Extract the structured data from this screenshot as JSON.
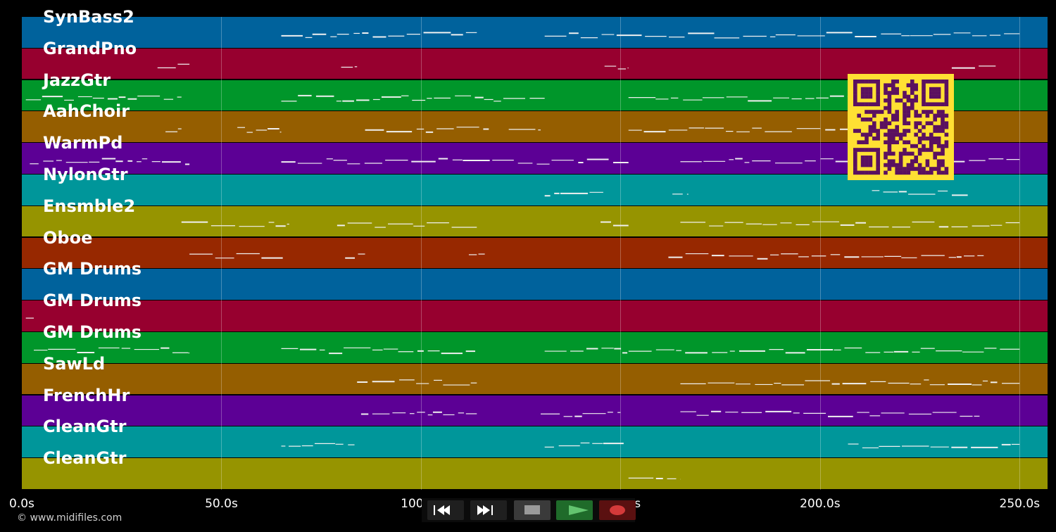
{
  "app": {
    "copyright": "© www.midifiles.com"
  },
  "timeline": {
    "max_seconds": 257.0,
    "ticks": [
      {
        "label": "0.0s",
        "seconds": 0
      },
      {
        "label": "50.0s",
        "seconds": 50
      },
      {
        "label": "100.0s",
        "seconds": 100
      },
      {
        "label": "150.0s",
        "seconds": 150
      },
      {
        "label": "200.0s",
        "seconds": 200
      },
      {
        "label": "250.0s",
        "seconds": 250
      }
    ]
  },
  "tracks": [
    {
      "name": "SynBass2",
      "color": "#00629c",
      "segments": [
        [
          65,
          114
        ],
        [
          131,
          250
        ]
      ]
    },
    {
      "name": "GrandPno",
      "color": "#97002f",
      "segments": [
        [
          34,
          42
        ],
        [
          80,
          84
        ],
        [
          146,
          152
        ],
        [
          233,
          244
        ]
      ]
    },
    {
      "name": "JazzGtr",
      "color": "#00962a",
      "segments": [
        [
          1,
          40
        ],
        [
          65,
          131
        ],
        [
          152,
          227
        ]
      ]
    },
    {
      "name": "AahChoir",
      "color": "#955e00",
      "segments": [
        [
          36,
          40
        ],
        [
          54,
          65
        ],
        [
          86,
          117
        ],
        [
          122,
          130
        ],
        [
          152,
          230
        ]
      ]
    },
    {
      "name": "WarmPd",
      "color": "#5c0095",
      "segments": [
        [
          2,
          42
        ],
        [
          65,
          152
        ],
        [
          165,
          250
        ]
      ]
    },
    {
      "name": "NylonGtr",
      "color": "#00969a",
      "segments": [
        [
          131,
          146
        ],
        [
          163,
          167
        ],
        [
          213,
          237
        ]
      ]
    },
    {
      "name": "Ensmble2",
      "color": "#969400",
      "segments": [
        [
          40,
          67
        ],
        [
          79,
          114
        ],
        [
          145,
          152
        ],
        [
          165,
          250
        ]
      ]
    },
    {
      "name": "Oboe",
      "color": "#972800",
      "segments": [
        [
          42,
          66
        ],
        [
          81,
          86
        ],
        [
          112,
          116
        ],
        [
          162,
          241
        ]
      ]
    },
    {
      "name": "GM Drums",
      "color": "#00629c",
      "segments": []
    },
    {
      "name": "GM Drums",
      "color": "#97002f",
      "segments": [
        [
          1,
          3
        ]
      ]
    },
    {
      "name": "GM Drums",
      "color": "#00962a",
      "segments": [
        [
          3,
          42
        ],
        [
          65,
          114
        ],
        [
          131,
          250
        ]
      ]
    },
    {
      "name": "SawLd",
      "color": "#955e00",
      "segments": [
        [
          84,
          114
        ],
        [
          165,
          250
        ]
      ]
    },
    {
      "name": "FrenchHr",
      "color": "#5c0095",
      "segments": [
        [
          85,
          114
        ],
        [
          130,
          150
        ],
        [
          165,
          241
        ]
      ]
    },
    {
      "name": "CleanGtr",
      "color": "#00969a",
      "segments": [
        [
          65,
          84
        ],
        [
          131,
          151
        ],
        [
          207,
          250
        ]
      ]
    },
    {
      "name": "CleanGtr",
      "color": "#969400",
      "segments": [
        [
          152,
          165
        ]
      ]
    }
  ],
  "transport": {
    "buttons": [
      {
        "name": "rewind",
        "icon": "rewind-icon",
        "bg": "#1f1f1f"
      },
      {
        "name": "fast-forward",
        "icon": "fast-forward-icon",
        "bg": "#1f1f1f"
      },
      {
        "name": "stop",
        "icon": "stop-icon",
        "bg": "#3a3a3a"
      },
      {
        "name": "play",
        "icon": "play-icon",
        "bg": "#1f6b2a"
      },
      {
        "name": "record",
        "icon": "record-icon",
        "bg": "#5a1010"
      }
    ]
  },
  "overlay": {
    "icon": "qr-code-icon",
    "color": "#ffe033",
    "ink": "#5a1060"
  }
}
